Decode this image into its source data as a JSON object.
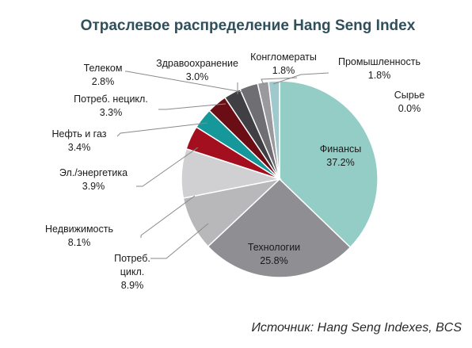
{
  "chart_data": {
    "type": "pie",
    "title": "Отраслевое распределение Hang Seng Index",
    "source": "Источник: Hang Seng Indexes, BCS",
    "slices": [
      {
        "label": "Финансы",
        "value": 37.2,
        "value_text": "37.2%",
        "color": "#93cdc6"
      },
      {
        "label": "Технологии",
        "value": 25.8,
        "value_text": "25.8%",
        "color": "#8e8e93"
      },
      {
        "label": "Потреб. цикл.",
        "value": 8.9,
        "value_text": "8.9%",
        "color": "#b8b8bb"
      },
      {
        "label": "Недвижимость",
        "value": 8.1,
        "value_text": "8.1%",
        "color": "#d0d0d2"
      },
      {
        "label": "Эл./энергетика",
        "value": 3.9,
        "value_text": "3.9%",
        "color": "#a30f1e"
      },
      {
        "label": "Нефть и газ",
        "value": 3.4,
        "value_text": "3.4%",
        "color": "#16979a"
      },
      {
        "label": "Потреб. нецикл.",
        "value": 3.3,
        "value_text": "3.3%",
        "color": "#6b0d14"
      },
      {
        "label": "Телеком",
        "value": 2.8,
        "value_text": "2.8%",
        "color": "#3f3f44"
      },
      {
        "label": "Здравоохранение",
        "value": 3.0,
        "value_text": "3.0%",
        "color": "#6e6e73"
      },
      {
        "label": "Конгломераты",
        "value": 1.8,
        "value_text": "1.8%",
        "color": "#9a9a9e"
      },
      {
        "label": "Промышленность",
        "value": 1.8,
        "value_text": "1.8%",
        "color": "#9fc9cc"
      },
      {
        "label": "Сырье",
        "value": 0.0,
        "value_text": "0.0%",
        "color": "#c8e2e0"
      }
    ]
  }
}
